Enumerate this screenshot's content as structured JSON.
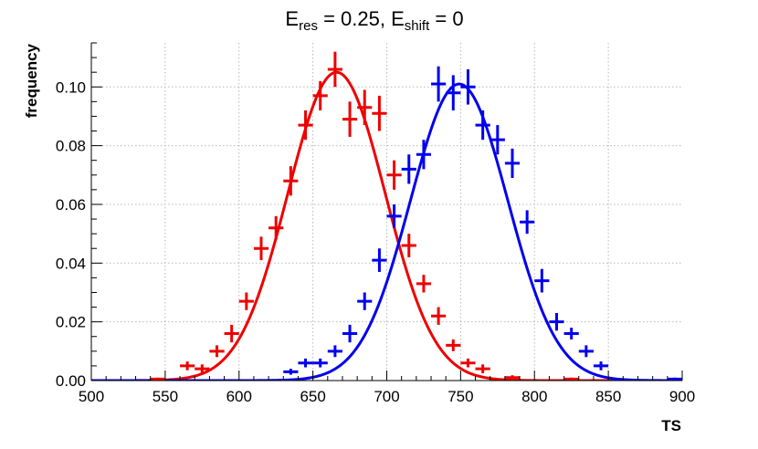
{
  "chart_data": {
    "type": "scatter",
    "title": {
      "parts": [
        {
          "text": "E",
          "kind": "normal"
        },
        {
          "text": "res",
          "kind": "sub"
        },
        {
          "text": " = 0.25, E",
          "kind": "normal"
        },
        {
          "text": "shift",
          "kind": "sub"
        },
        {
          "text": " = 0",
          "kind": "normal"
        }
      ]
    },
    "xlabel": "TS",
    "ylabel": "frequency",
    "xlim": [
      500,
      900
    ],
    "ylim": [
      0,
      0.115
    ],
    "xticks": [
      500,
      550,
      600,
      650,
      700,
      750,
      800,
      850,
      900
    ],
    "xtick_labels": [
      "500",
      "550",
      "600",
      "650",
      "700",
      "750",
      "800",
      "850",
      "900"
    ],
    "yticks": [
      0,
      0.02,
      0.04,
      0.06,
      0.08,
      0.1
    ],
    "ytick_labels": [
      "0.00",
      "0.02",
      "0.04",
      "0.06",
      "0.08",
      "0.10"
    ],
    "grid": true,
    "bin_width": 10,
    "series": [
      {
        "name": "red",
        "color": "#ee0000",
        "fit": {
          "type": "gaussian",
          "amplitude": 0.105,
          "mean": 666,
          "sigma": 33
        },
        "points": [
          {
            "x": 545,
            "y": 0.0005,
            "err": 0.0005
          },
          {
            "x": 565,
            "y": 0.005,
            "err": 0.0015
          },
          {
            "x": 575,
            "y": 0.004,
            "err": 0.0015
          },
          {
            "x": 585,
            "y": 0.01,
            "err": 0.002
          },
          {
            "x": 595,
            "y": 0.016,
            "err": 0.003
          },
          {
            "x": 605,
            "y": 0.027,
            "err": 0.003
          },
          {
            "x": 615,
            "y": 0.045,
            "err": 0.004
          },
          {
            "x": 625,
            "y": 0.052,
            "err": 0.004
          },
          {
            "x": 635,
            "y": 0.068,
            "err": 0.005
          },
          {
            "x": 645,
            "y": 0.087,
            "err": 0.005
          },
          {
            "x": 655,
            "y": 0.097,
            "err": 0.005
          },
          {
            "x": 665,
            "y": 0.106,
            "err": 0.006
          },
          {
            "x": 675,
            "y": 0.089,
            "err": 0.006
          },
          {
            "x": 685,
            "y": 0.093,
            "err": 0.006
          },
          {
            "x": 695,
            "y": 0.091,
            "err": 0.006
          },
          {
            "x": 705,
            "y": 0.07,
            "err": 0.005
          },
          {
            "x": 715,
            "y": 0.046,
            "err": 0.004
          },
          {
            "x": 725,
            "y": 0.033,
            "err": 0.003
          },
          {
            "x": 735,
            "y": 0.022,
            "err": 0.003
          },
          {
            "x": 745,
            "y": 0.012,
            "err": 0.002
          },
          {
            "x": 755,
            "y": 0.006,
            "err": 0.0015
          },
          {
            "x": 765,
            "y": 0.004,
            "err": 0.0015
          },
          {
            "x": 785,
            "y": 0.001,
            "err": 0.0008
          },
          {
            "x": 825,
            "y": 0.0005,
            "err": 0.0005
          }
        ]
      },
      {
        "name": "blue",
        "color": "#0000ee",
        "fit": {
          "type": "gaussian",
          "amplitude": 0.101,
          "mean": 749,
          "sigma": 33
        },
        "points": [
          {
            "x": 635,
            "y": 0.003,
            "err": 0.001
          },
          {
            "x": 645,
            "y": 0.006,
            "err": 0.0015
          },
          {
            "x": 655,
            "y": 0.006,
            "err": 0.0015
          },
          {
            "x": 665,
            "y": 0.01,
            "err": 0.002
          },
          {
            "x": 675,
            "y": 0.016,
            "err": 0.003
          },
          {
            "x": 685,
            "y": 0.027,
            "err": 0.003
          },
          {
            "x": 695,
            "y": 0.041,
            "err": 0.004
          },
          {
            "x": 705,
            "y": 0.056,
            "err": 0.004
          },
          {
            "x": 715,
            "y": 0.072,
            "err": 0.005
          },
          {
            "x": 725,
            "y": 0.077,
            "err": 0.005
          },
          {
            "x": 735,
            "y": 0.101,
            "err": 0.006
          },
          {
            "x": 745,
            "y": 0.098,
            "err": 0.006
          },
          {
            "x": 755,
            "y": 0.1,
            "err": 0.006
          },
          {
            "x": 765,
            "y": 0.087,
            "err": 0.005
          },
          {
            "x": 775,
            "y": 0.082,
            "err": 0.005
          },
          {
            "x": 785,
            "y": 0.074,
            "err": 0.005
          },
          {
            "x": 795,
            "y": 0.054,
            "err": 0.004
          },
          {
            "x": 805,
            "y": 0.034,
            "err": 0.004
          },
          {
            "x": 815,
            "y": 0.02,
            "err": 0.003
          },
          {
            "x": 825,
            "y": 0.016,
            "err": 0.002
          },
          {
            "x": 835,
            "y": 0.01,
            "err": 0.002
          },
          {
            "x": 845,
            "y": 0.005,
            "err": 0.0015
          },
          {
            "x": 895,
            "y": 0.0005,
            "err": 0.0005
          }
        ]
      }
    ]
  }
}
